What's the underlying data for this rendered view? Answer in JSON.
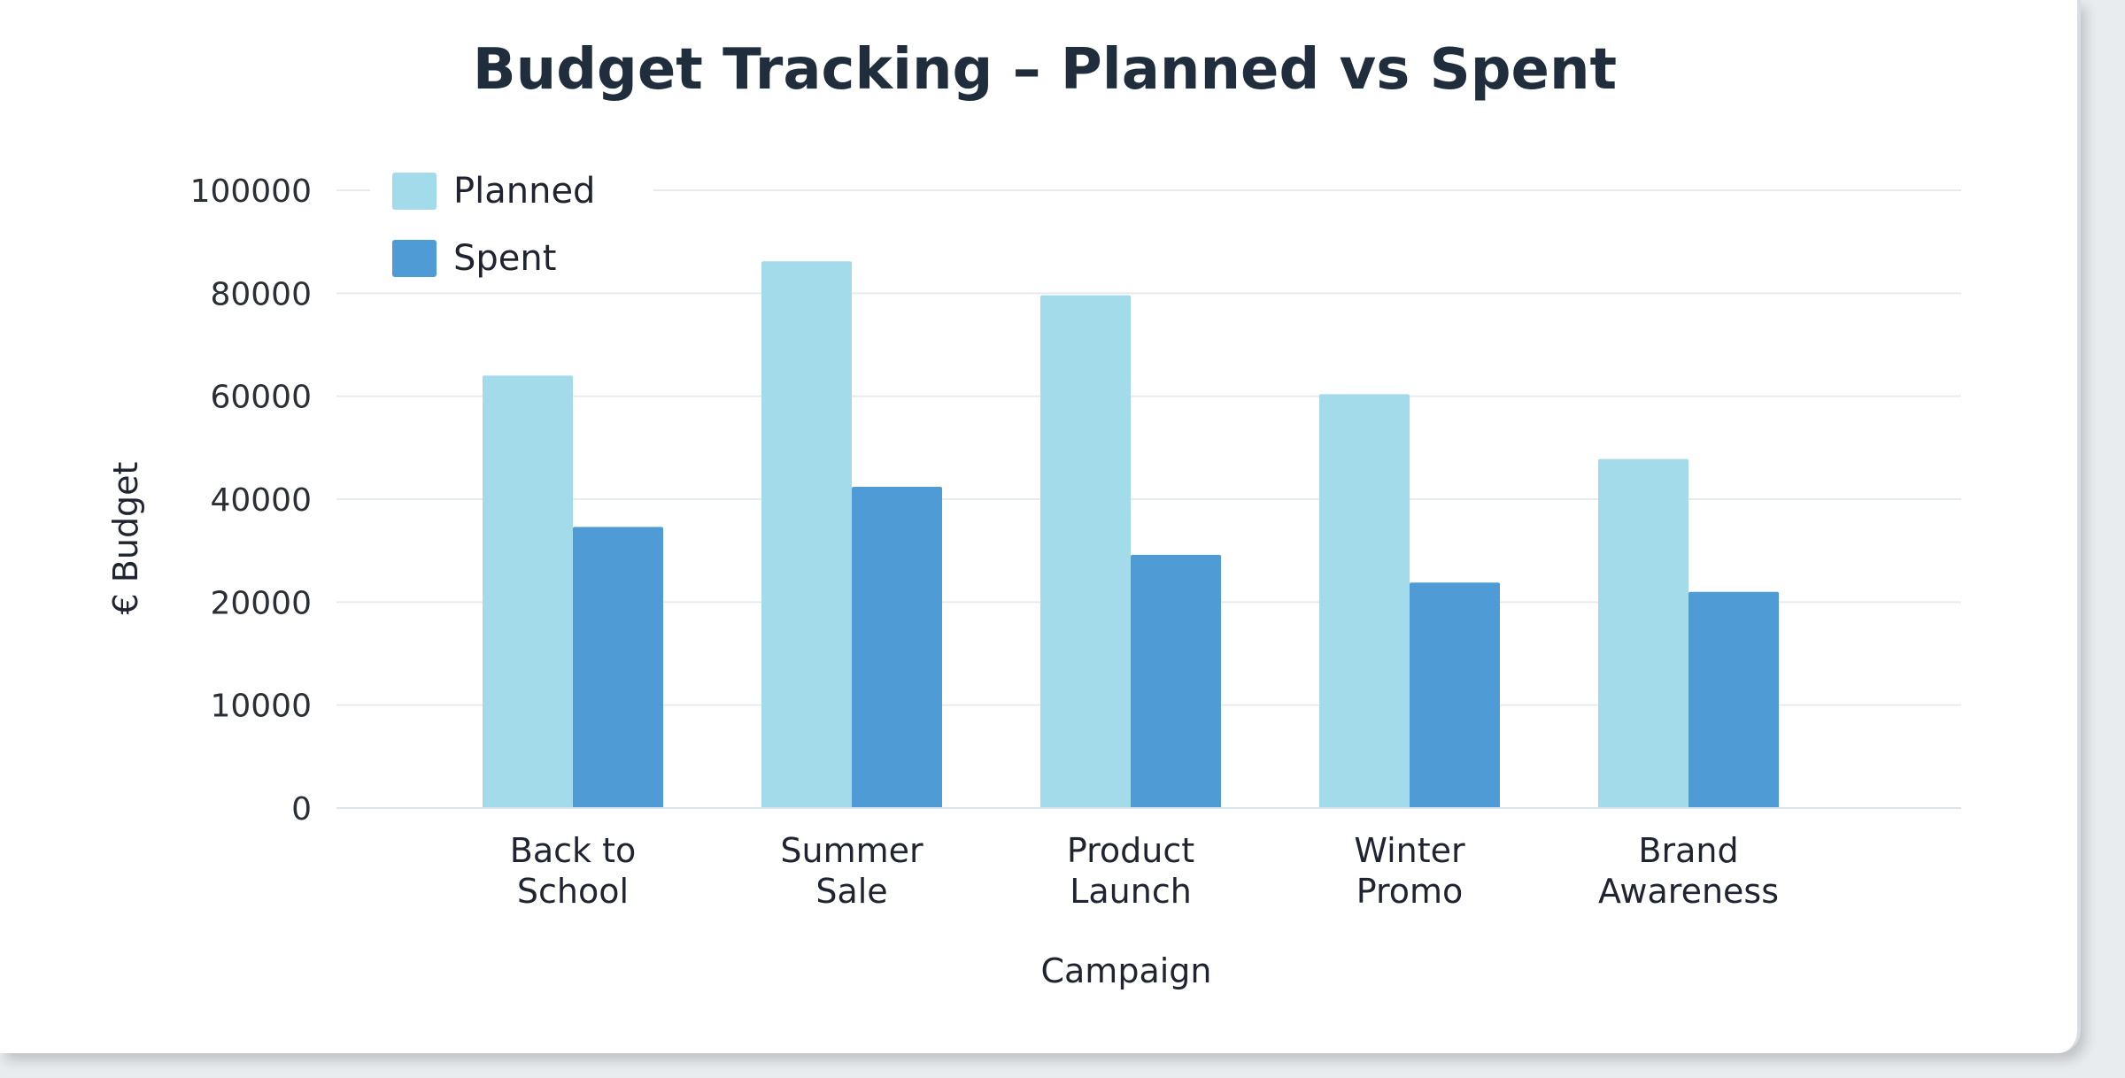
{
  "chart_data": {
    "type": "bar",
    "title": "Budget Tracking – Planned vs Spent",
    "xlabel": "Campaign",
    "ylabel": "€ Budget",
    "categories": [
      [
        "Back to",
        "School"
      ],
      [
        "Summer",
        "Sale"
      ],
      [
        "Product",
        "Launch"
      ],
      [
        "Winter",
        "Promo"
      ],
      [
        "Brand",
        "Awareness"
      ]
    ],
    "series": [
      {
        "name": "Planned",
        "color": "#a4dbeb",
        "values": [
          70000,
          88500,
          83000,
          67000,
          56500
        ]
      },
      {
        "name": "Spent",
        "color": "#4f9bd5",
        "values": [
          45500,
          52000,
          41000,
          36500,
          35000
        ]
      }
    ],
    "yticks": [
      0,
      10000,
      20000,
      40000,
      60000,
      80000,
      100000
    ],
    "ylim": [
      0,
      100000
    ],
    "grid": true,
    "legend_position": "top-left"
  }
}
